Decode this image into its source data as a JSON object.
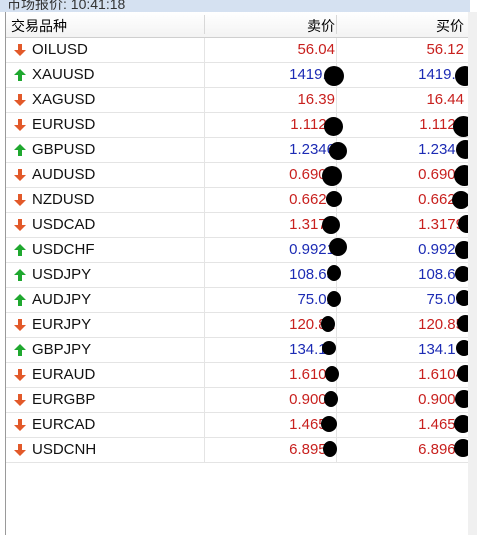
{
  "window": {
    "title": "市场报价: 10:41:18"
  },
  "columns": {
    "symbol": "交易品种",
    "bid": "卖价",
    "ask": "买价"
  },
  "colors": {
    "up_arrow": "#1fa82f",
    "down_arrow": "#e2592a",
    "up_price": "#1c2bb4",
    "down_price": "#c8201e"
  },
  "rows": [
    {
      "symbol": "OILUSD",
      "bid": "56.04",
      "ask": "56.12",
      "direction": "down"
    },
    {
      "symbol": "XAUUSD",
      "bid": "1419.0",
      "ask": "1419.4",
      "direction": "up"
    },
    {
      "symbol": "XAGUSD",
      "bid": "16.39",
      "ask": "16.44",
      "direction": "down"
    },
    {
      "symbol": "EURUSD",
      "bid": "1.1121",
      "ask": "1.1122",
      "direction": "down"
    },
    {
      "symbol": "GBPUSD",
      "bid": "1.2346",
      "ask": "1.2348",
      "direction": "up"
    },
    {
      "symbol": "AUDUSD",
      "bid": "0.6905",
      "ask": "0.6907",
      "direction": "down"
    },
    {
      "symbol": "NZDUSD",
      "bid": "0.6625",
      "ask": "0.6626",
      "direction": "down"
    },
    {
      "symbol": "USDCAD",
      "bid": "1.3177",
      "ask": "1.3179",
      "direction": "down"
    },
    {
      "symbol": "USDCHF",
      "bid": "0.9921",
      "ask": "0.9923",
      "direction": "up"
    },
    {
      "symbol": "USDJPY",
      "bid": "108.63",
      "ask": "108.65",
      "direction": "up"
    },
    {
      "symbol": "AUDJPY",
      "bid": "75.02",
      "ask": "75.05",
      "direction": "up"
    },
    {
      "symbol": "EURJPY",
      "bid": "120.82",
      "ask": "120.85",
      "direction": "down"
    },
    {
      "symbol": "GBPJPY",
      "bid": "134.13",
      "ask": "134.16",
      "direction": "up"
    },
    {
      "symbol": "EURAUD",
      "bid": "1.6101",
      "ask": "1.6104",
      "direction": "down"
    },
    {
      "symbol": "EURGBP",
      "bid": "0.9006",
      "ask": "0.9009",
      "direction": "down"
    },
    {
      "symbol": "EURCAD",
      "bid": "1.4654",
      "ask": "1.4658",
      "direction": "down"
    },
    {
      "symbol": "USDCNH",
      "bid": "6.8954",
      "ask": "6.8968",
      "direction": "down"
    }
  ]
}
